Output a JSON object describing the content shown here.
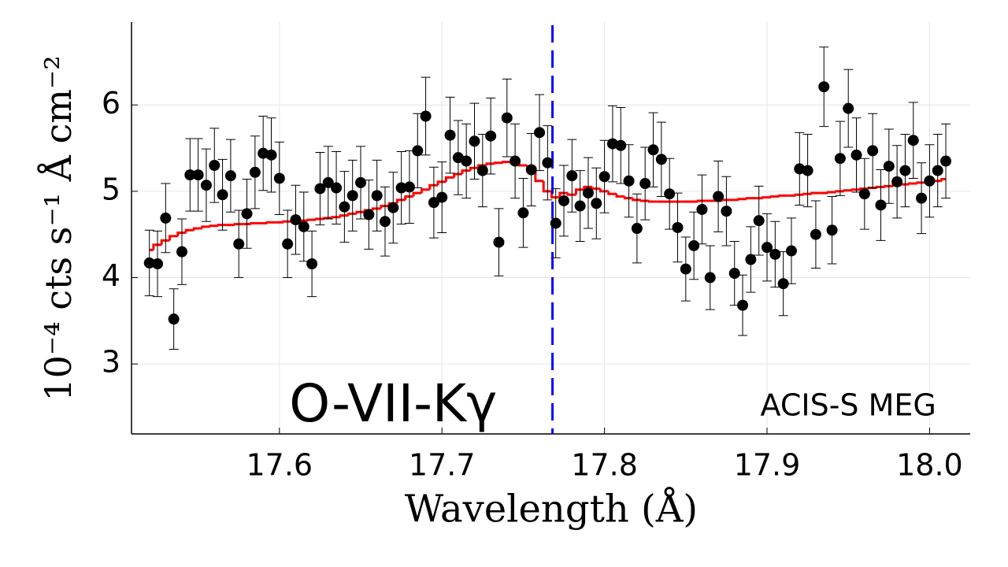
{
  "chart_data": {
    "type": "scatter",
    "xlabel": "Wavelength (Å)",
    "ylabel": "10⁻⁴ cts s⁻¹ Å cm⁻²",
    "annotations": [
      {
        "text": "O-VII-Kγ",
        "x": 17.67,
        "y": 2.5
      },
      {
        "text": "ACIS-S MEG",
        "x": 17.95,
        "y": 2.5
      }
    ],
    "xlim": [
      17.509,
      18.025
    ],
    "ylim": [
      2.19,
      6.96
    ],
    "xticks": [
      17.6,
      17.7,
      17.8,
      17.9,
      {
        "value": 18.0,
        "label": "18.0"
      }
    ],
    "yticks": [
      3,
      4,
      5,
      6
    ],
    "grid": true,
    "x": [
      17.52,
      17.525,
      17.53,
      17.535,
      17.54,
      17.545,
      17.55,
      17.555,
      17.56,
      17.565,
      17.57,
      17.575,
      17.58,
      17.585,
      17.59,
      17.595,
      17.6,
      17.605,
      17.61,
      17.615,
      17.62,
      17.625,
      17.63,
      17.635,
      17.64,
      17.645,
      17.65,
      17.655,
      17.66,
      17.665,
      17.67,
      17.675,
      17.68,
      17.685,
      17.69,
      17.695,
      17.7,
      17.705,
      17.71,
      17.715,
      17.72,
      17.725,
      17.73,
      17.735,
      17.74,
      17.745,
      17.75,
      17.755,
      17.76,
      17.765,
      17.77,
      17.775,
      17.78,
      17.785,
      17.79,
      17.795,
      17.8,
      17.805,
      17.81,
      17.815,
      17.82,
      17.825,
      17.83,
      17.835,
      17.84,
      17.845,
      17.85,
      17.855,
      17.86,
      17.865,
      17.87,
      17.875,
      17.88,
      17.885,
      17.89,
      17.895,
      17.9,
      17.905,
      17.91,
      17.915,
      17.92,
      17.925,
      17.93,
      17.935,
      17.94,
      17.945,
      17.95,
      17.955,
      17.96,
      17.965,
      17.97,
      17.975,
      17.98,
      17.985,
      17.99,
      17.995,
      18.0,
      18.005,
      18.01
    ],
    "series": [
      {
        "color": "#000000",
        "values": [
          4.17,
          4.16,
          4.69,
          3.52,
          4.3,
          5.19,
          5.19,
          5.07,
          5.3,
          4.96,
          5.18,
          4.39,
          4.74,
          5.22,
          5.44,
          5.42,
          5.15,
          4.39,
          4.67,
          4.59,
          4.16,
          5.03,
          5.1,
          5.04,
          4.82,
          4.95,
          5.1,
          4.73,
          4.95,
          4.65,
          4.81,
          5.04,
          5.05,
          5.47,
          5.87,
          4.87,
          4.93,
          5.65,
          5.39,
          5.35,
          5.58,
          5.24,
          5.64,
          4.41,
          5.85,
          5.35,
          4.75,
          5.25,
          5.68,
          5.33,
          4.63,
          4.89,
          5.18,
          4.83,
          4.98,
          4.86,
          5.17,
          5.55,
          5.53,
          5.12,
          4.57,
          5.09,
          5.48,
          5.37,
          4.97,
          4.58,
          4.1,
          4.37,
          4.79,
          4.0,
          4.94,
          4.77,
          4.05,
          3.68,
          4.21,
          4.66,
          4.35,
          4.27,
          3.93,
          4.31,
          5.26,
          5.24,
          4.5,
          6.21,
          4.55,
          5.38,
          5.96,
          5.42,
          4.97,
          5.47,
          4.84,
          5.29,
          5.11,
          5.24,
          5.59,
          4.92,
          5.12,
          5.24,
          5.35
        ],
        "errors": [
          0.38,
          0.38,
          0.4,
          0.35,
          0.38,
          0.42,
          0.42,
          0.42,
          0.43,
          0.41,
          0.42,
          0.39,
          0.4,
          0.42,
          0.43,
          0.43,
          0.42,
          0.39,
          0.4,
          0.4,
          0.38,
          0.42,
          0.42,
          0.42,
          0.41,
          0.41,
          0.42,
          0.4,
          0.41,
          0.4,
          0.41,
          0.42,
          0.42,
          0.43,
          0.45,
          0.41,
          0.41,
          0.44,
          0.43,
          0.43,
          0.44,
          0.42,
          0.44,
          0.39,
          0.45,
          0.43,
          0.4,
          0.42,
          0.44,
          0.43,
          0.4,
          0.41,
          0.42,
          0.41,
          0.41,
          0.41,
          0.42,
          0.44,
          0.44,
          0.42,
          0.4,
          0.42,
          0.43,
          0.43,
          0.41,
          0.4,
          0.37,
          0.39,
          0.4,
          0.37,
          0.41,
          0.4,
          0.37,
          0.35,
          0.38,
          0.4,
          0.39,
          0.38,
          0.37,
          0.38,
          0.42,
          0.42,
          0.39,
          0.46,
          0.39,
          0.43,
          0.45,
          0.43,
          0.41,
          0.43,
          0.41,
          0.43,
          0.42,
          0.42,
          0.44,
          0.41,
          0.42,
          0.42,
          0.43
        ]
      },
      {
        "type": "step",
        "color": "#ff0000",
        "values": [
          4.32,
          4.38,
          4.43,
          4.48,
          4.52,
          4.55,
          4.57,
          4.59,
          4.6,
          4.61,
          4.61,
          4.62,
          4.62,
          4.63,
          4.63,
          4.64,
          4.64,
          4.65,
          4.65,
          4.66,
          4.67,
          4.68,
          4.69,
          4.7,
          4.72,
          4.74,
          4.76,
          4.78,
          4.8,
          4.83,
          4.86,
          4.9,
          4.94,
          4.98,
          5.02,
          5.07,
          5.11,
          5.16,
          5.2,
          5.24,
          5.27,
          5.3,
          5.32,
          5.33,
          5.34,
          5.33,
          5.3,
          5.24,
          5.12,
          5.0,
          4.93,
          4.98,
          4.96,
          5.02,
          5.05,
          5.03,
          5.0,
          4.97,
          4.94,
          4.92,
          4.9,
          4.89,
          4.88,
          4.88,
          4.88,
          4.88,
          4.88,
          4.88,
          4.89,
          4.89,
          4.89,
          4.9,
          4.9,
          4.91,
          4.92,
          4.92,
          4.93,
          4.94,
          4.95,
          4.95,
          4.96,
          4.97,
          4.98,
          4.98,
          4.99,
          5.0,
          5.01,
          5.02,
          5.03,
          5.04,
          5.05,
          5.06,
          5.07,
          5.08,
          5.09,
          5.1,
          5.11,
          5.12,
          5.14
        ]
      }
    ],
    "reference_line": {
      "x": 17.768,
      "color": "#0000ff",
      "style": "dashed"
    }
  }
}
